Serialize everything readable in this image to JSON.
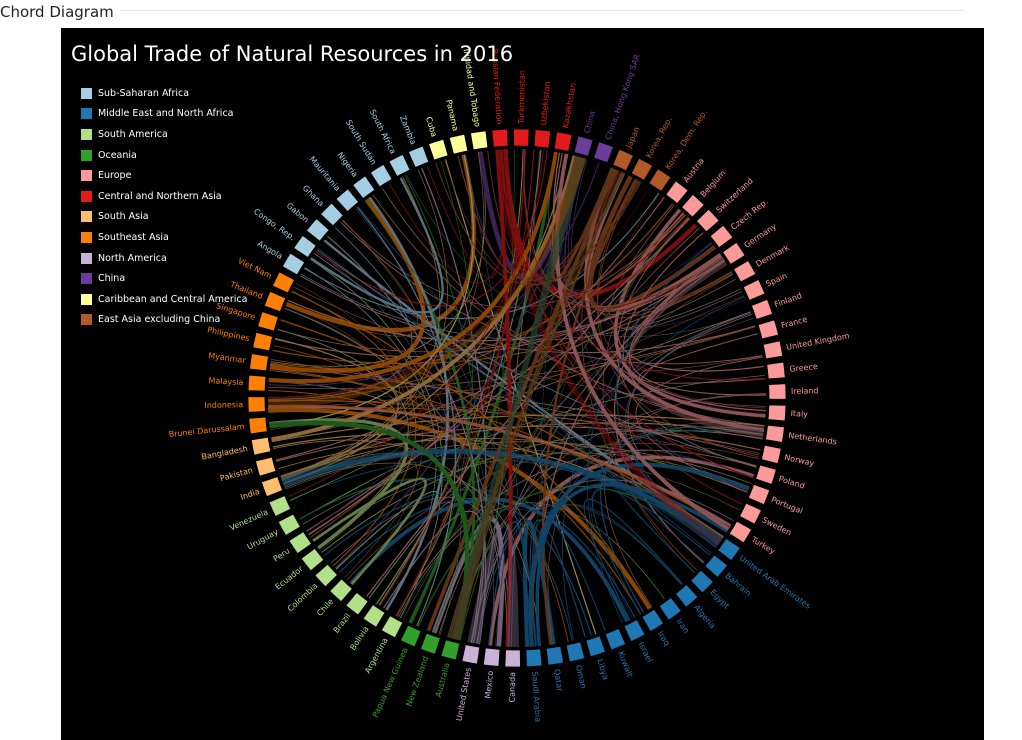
{
  "page": {
    "title": "Chord Diagram"
  },
  "visual": {
    "title": "Global Trade of Natural Resources in 2016"
  },
  "regions": [
    {
      "name": "Sub-Saharan Africa",
      "color": "#a6cee3"
    },
    {
      "name": "Middle East and North Africa",
      "color": "#1f78b4"
    },
    {
      "name": "South America",
      "color": "#b2df8a"
    },
    {
      "name": "Oceania",
      "color": "#33a02c"
    },
    {
      "name": "Europe",
      "color": "#fb9a99"
    },
    {
      "name": "Central and Northern Asia",
      "color": "#e31a1c"
    },
    {
      "name": "South Asia",
      "color": "#fdbf6f"
    },
    {
      "name": "Southeast Asia",
      "color": "#ff7f00"
    },
    {
      "name": "North America",
      "color": "#cab2d6"
    },
    {
      "name": "China",
      "color": "#6a3d9a"
    },
    {
      "name": "Caribbean and Central America",
      "color": "#ffff99"
    },
    {
      "name": "East Asia excluding China",
      "color": "#b15928"
    }
  ],
  "nodes": [
    {
      "label": "Russian Federation",
      "region": "Central and Northern Asia"
    },
    {
      "label": "Turkmenistan",
      "region": "Central and Northern Asia"
    },
    {
      "label": "Uzbekistan",
      "region": "Central and Northern Asia"
    },
    {
      "label": "Kazakhstan",
      "region": "Central and Northern Asia"
    },
    {
      "label": "China",
      "region": "China"
    },
    {
      "label": "China, Hong Kong SAR",
      "region": "China"
    },
    {
      "label": "Japan",
      "region": "East Asia excluding China"
    },
    {
      "label": "Korea, Rep.",
      "region": "East Asia excluding China"
    },
    {
      "label": "Korea, Dem. Rep.",
      "region": "East Asia excluding China"
    },
    {
      "label": "Austria",
      "region": "Europe"
    },
    {
      "label": "Belgium",
      "region": "Europe"
    },
    {
      "label": "Switzerland",
      "region": "Europe"
    },
    {
      "label": "Czech Rep.",
      "region": "Europe"
    },
    {
      "label": "Germany",
      "region": "Europe"
    },
    {
      "label": "Denmark",
      "region": "Europe"
    },
    {
      "label": "Spain",
      "region": "Europe"
    },
    {
      "label": "Finland",
      "region": "Europe"
    },
    {
      "label": "France",
      "region": "Europe"
    },
    {
      "label": "United Kingdom",
      "region": "Europe"
    },
    {
      "label": "Greece",
      "region": "Europe"
    },
    {
      "label": "Ireland",
      "region": "Europe"
    },
    {
      "label": "Italy",
      "region": "Europe"
    },
    {
      "label": "Netherlands",
      "region": "Europe"
    },
    {
      "label": "Norway",
      "region": "Europe"
    },
    {
      "label": "Poland",
      "region": "Europe"
    },
    {
      "label": "Portugal",
      "region": "Europe"
    },
    {
      "label": "Sweden",
      "region": "Europe"
    },
    {
      "label": "Turkey",
      "region": "Europe"
    },
    {
      "label": "United Arab Emirates",
      "region": "Middle East and North Africa"
    },
    {
      "label": "Bahrain",
      "region": "Middle East and North Africa"
    },
    {
      "label": "Egypt",
      "region": "Middle East and North Africa"
    },
    {
      "label": "Algeria",
      "region": "Middle East and North Africa"
    },
    {
      "label": "Iran",
      "region": "Middle East and North Africa"
    },
    {
      "label": "Iraq",
      "region": "Middle East and North Africa"
    },
    {
      "label": "Israel",
      "region": "Middle East and North Africa"
    },
    {
      "label": "Kuwait",
      "region": "Middle East and North Africa"
    },
    {
      "label": "Libya",
      "region": "Middle East and North Africa"
    },
    {
      "label": "Oman",
      "region": "Middle East and North Africa"
    },
    {
      "label": "Qatar",
      "region": "Middle East and North Africa"
    },
    {
      "label": "Saudi Arabia",
      "region": "Middle East and North Africa"
    },
    {
      "label": "Canada",
      "region": "North America"
    },
    {
      "label": "Mexico",
      "region": "North America"
    },
    {
      "label": "United States",
      "region": "North America"
    },
    {
      "label": "Australia",
      "region": "Oceania"
    },
    {
      "label": "New Zealand",
      "region": "Oceania"
    },
    {
      "label": "Papua New Guinea",
      "region": "Oceania"
    },
    {
      "label": "Argentina",
      "region": "South America"
    },
    {
      "label": "Bolivia",
      "region": "South America"
    },
    {
      "label": "Brazil",
      "region": "South America"
    },
    {
      "label": "Chile",
      "region": "South America"
    },
    {
      "label": "Colombia",
      "region": "South America"
    },
    {
      "label": "Ecuador",
      "region": "South America"
    },
    {
      "label": "Peru",
      "region": "South America"
    },
    {
      "label": "Uruguay",
      "region": "South America"
    },
    {
      "label": "Venezuela",
      "region": "South America"
    },
    {
      "label": "India",
      "region": "South Asia"
    },
    {
      "label": "Pakistan",
      "region": "South Asia"
    },
    {
      "label": "Bangladesh",
      "region": "South Asia"
    },
    {
      "label": "Brunei Darussalam",
      "region": "Southeast Asia"
    },
    {
      "label": "Indonesia",
      "region": "Southeast Asia"
    },
    {
      "label": "Malaysia",
      "region": "Southeast Asia"
    },
    {
      "label": "Myanmar",
      "region": "Southeast Asia"
    },
    {
      "label": "Philippines",
      "region": "Southeast Asia"
    },
    {
      "label": "Singapore",
      "region": "Southeast Asia"
    },
    {
      "label": "Thailand",
      "region": "Southeast Asia"
    },
    {
      "label": "Viet Nam",
      "region": "Southeast Asia"
    },
    {
      "label": "Angola",
      "region": "Sub-Saharan Africa"
    },
    {
      "label": "Congo, Rep.",
      "region": "Sub-Saharan Africa"
    },
    {
      "label": "Gabon",
      "region": "Sub-Saharan Africa"
    },
    {
      "label": "Ghana",
      "region": "Sub-Saharan Africa"
    },
    {
      "label": "Mauritania",
      "region": "Sub-Saharan Africa"
    },
    {
      "label": "Nigeria",
      "region": "Sub-Saharan Africa"
    },
    {
      "label": "South Sudan",
      "region": "Sub-Saharan Africa"
    },
    {
      "label": "South Africa",
      "region": "Sub-Saharan Africa"
    },
    {
      "label": "Zambia",
      "region": "Sub-Saharan Africa"
    },
    {
      "label": "Cuba",
      "region": "Caribbean and Central America"
    },
    {
      "label": "Panama",
      "region": "Caribbean and Central America"
    },
    {
      "label": "Trinidad and Tobago",
      "region": "Caribbean and Central America"
    }
  ]
}
